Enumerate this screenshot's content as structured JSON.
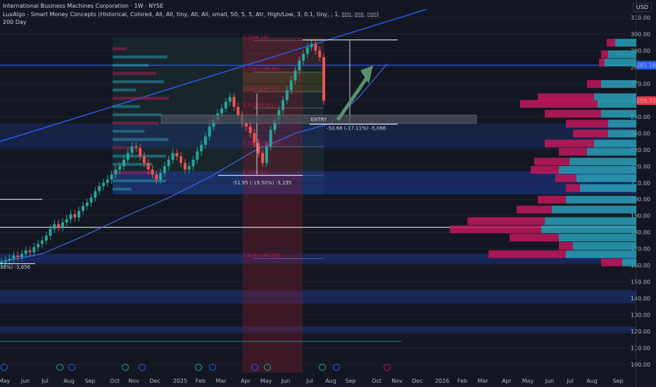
{
  "header": {
    "title": "International Business Machines Corporation · 1W · NYSE",
    "indicator": "LuxAlgo - Smart Money Concepts (Historical, Colored, All, All, tiny, All, All, small, 50, 5, 5, Atr, High/Low, 3, 0.1, tiny, , 1, ▯▯▯, ▯▯▯, ▯▯▯)",
    "ma": "200 Day",
    "currency": "USD"
  },
  "colors": {
    "background": "#131722",
    "up": "#26a69a",
    "down": "#ef5350",
    "trendline": "#2962ff",
    "price_tag": "#f23645",
    "level_tag": "#2962ff",
    "profile_blue": "#2a9fb8",
    "profile_red": "#c2185b",
    "arrow": "#5a8f6e"
  },
  "chart_data": {
    "type": "candlestick",
    "y_ticks": [
      100,
      110,
      120,
      130,
      140,
      150,
      160,
      170,
      180,
      190,
      200,
      210,
      220,
      230,
      240,
      250,
      260,
      270,
      280,
      290,
      300,
      310
    ],
    "y_range": [
      95,
      315
    ],
    "x_ticks": [
      "May",
      "Jun",
      "Jul",
      "Aug",
      "Sep",
      "Oct",
      "Nov",
      "Dec",
      "2025",
      "Feb",
      "Mar",
      "Apr",
      "May",
      "Jun",
      "Jul",
      "Aug",
      "Sep",
      "Oct",
      "Nov",
      "Dec",
      "2026",
      "Feb",
      "Mar",
      "Apr",
      "May",
      "Jun",
      "Jul",
      "Aug",
      "Sep"
    ],
    "price_tags": [
      {
        "value": 281.16,
        "label": "281.16",
        "color": "#2962ff"
      },
      {
        "value": 259.72,
        "label": "259.72",
        "color": "#f23645"
      }
    ],
    "fib_levels": [
      {
        "label": "0 (296.16)",
        "value": 296.16
      },
      {
        "label": "0.236 (276.89)",
        "value": 276.89
      },
      {
        "label": "0.382 (264.97)",
        "value": 264.97
      },
      {
        "label": "0.5 (255.33)",
        "value": 255.33
      },
      {
        "label": "0.786 (231.98)",
        "value": 231.98
      },
      {
        "label": "1 (214.50)",
        "value": 214.5
      },
      {
        "label": "1.618 (164.03)",
        "value": 164.03
      }
    ],
    "annotations": {
      "entry": "ENTRY",
      "measure_1": "-50.66 (-17.11%) -5,066",
      "measure_2": "-51.95 (-19.50%) -5,195",
      "measure_3": "36%) -3,656"
    },
    "closes": [
      162,
      163,
      164,
      166,
      165,
      167,
      169,
      168,
      171,
      173,
      175,
      178,
      182,
      185,
      183,
      186,
      188,
      191,
      189,
      193,
      196,
      198,
      201,
      205,
      208,
      210,
      212,
      215,
      218,
      220,
      224,
      228,
      232,
      231,
      226,
      222,
      218,
      215,
      212,
      216,
      220,
      224,
      228,
      226,
      222,
      218,
      220,
      224,
      229,
      233,
      238,
      244,
      248,
      252,
      255,
      259,
      262,
      256,
      251,
      246,
      244,
      240,
      234,
      228,
      222,
      232,
      242,
      248,
      254,
      260,
      266,
      272,
      278,
      284,
      288,
      292,
      294,
      290,
      286,
      259.72
    ]
  }
}
